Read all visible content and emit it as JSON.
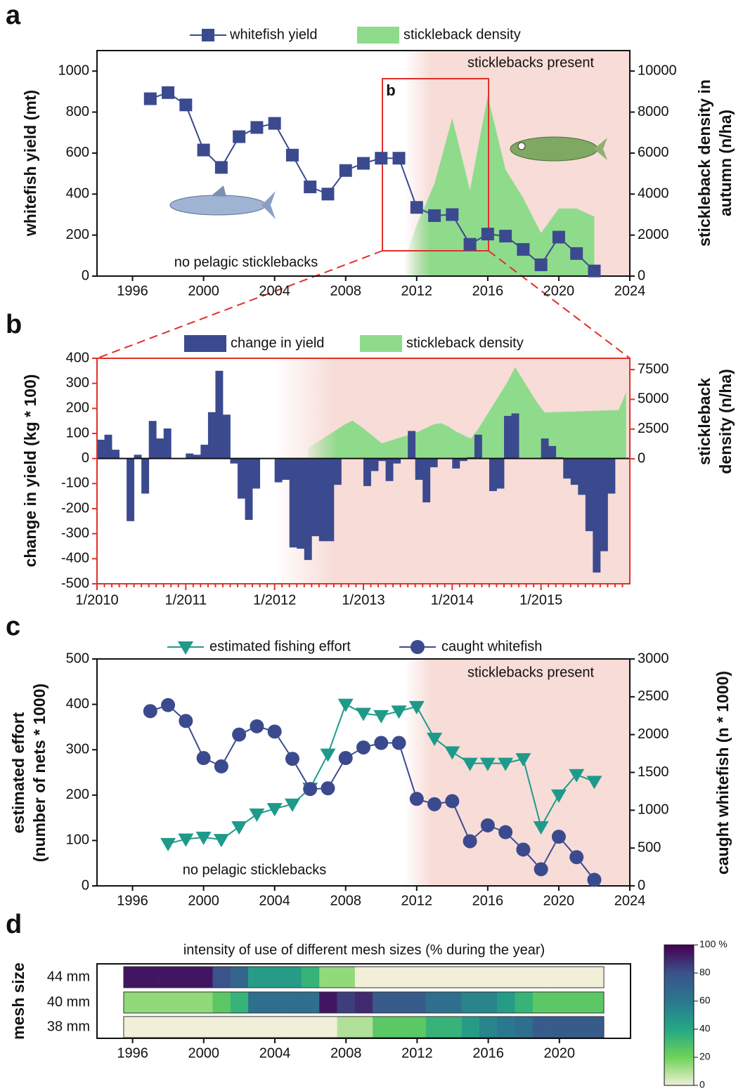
{
  "chart_data": [
    {
      "type": "line_area",
      "panel_label": "a",
      "annotations": [
        "sticklebacks present",
        "no pelagic sticklebacks"
      ],
      "zoom_label": "b",
      "ylabel": "whitefish yield (mt)",
      "y2label": [
        "stickleback density in",
        "autumn (n/ha)"
      ],
      "x": [
        1997,
        1998,
        1999,
        2000,
        2001,
        2002,
        2003,
        2004,
        2005,
        2006,
        2007,
        2008,
        2009,
        2010,
        2011,
        2012,
        2013,
        2014,
        2015,
        2016,
        2017,
        2018,
        2019,
        2020,
        2021,
        2022
      ],
      "xlim": [
        1994,
        2024
      ],
      "xticks": [
        1996,
        2000,
        2004,
        2008,
        2012,
        2016,
        2020,
        2024
      ],
      "ylim": [
        0,
        1100
      ],
      "yticks": [
        0,
        200,
        400,
        600,
        800,
        1000
      ],
      "y2lim": [
        0,
        11000
      ],
      "y2ticks": [
        0,
        2000,
        4000,
        6000,
        8000,
        10000
      ],
      "series": [
        {
          "name": "whitefish yield",
          "color": "#3b4a8f",
          "values": [
            865,
            895,
            835,
            615,
            530,
            680,
            725,
            745,
            590,
            435,
            400,
            515,
            550,
            575,
            575,
            335,
            295,
            300,
            155,
            205,
            195,
            130,
            55,
            190,
            110,
            25
          ]
        },
        {
          "name": "stickleback density",
          "color": "#8fdb8c",
          "axis": "y2",
          "x": [
            2011,
            2012,
            2013,
            2014,
            2015,
            2016,
            2017,
            2018,
            2019,
            2020,
            2021,
            2022
          ],
          "values": [
            0,
            2500,
            4500,
            7700,
            4200,
            8800,
            5200,
            3800,
            2100,
            3300,
            3300,
            2900
          ]
        }
      ]
    },
    {
      "type": "bar_area",
      "panel_label": "b",
      "ylabel": "change in yield (kg * 100)",
      "y2label": [
        "stickleback",
        "density (n/ha)"
      ],
      "categories": [
        "1/2010",
        null,
        null,
        null,
        null,
        null,
        null,
        null,
        null,
        null,
        null,
        null,
        "1/2011",
        null,
        null,
        null,
        null,
        null,
        null,
        null,
        null,
        null,
        null,
        null,
        "1/2012",
        null,
        null,
        null,
        null,
        null,
        null,
        null,
        null,
        null,
        null,
        null,
        "1/2013",
        null,
        null,
        null,
        null,
        null,
        null,
        null,
        null,
        null,
        null,
        null,
        "1/2014",
        null,
        null,
        null,
        null,
        null,
        null,
        null,
        null,
        null,
        null,
        null,
        "1/2015",
        null,
        null,
        null,
        null,
        null,
        null,
        null,
        null,
        null,
        null,
        null
      ],
      "ylim": [
        -500,
        400
      ],
      "yticks": [
        -500,
        -400,
        -300,
        -200,
        -100,
        0,
        100,
        200,
        300,
        400
      ],
      "y2lim": [
        -10500,
        8450
      ],
      "y2ticks": [
        0,
        2500,
        5000,
        7500
      ],
      "series": [
        {
          "name": "change in yield",
          "color": "#3b4a8f",
          "values": [
            75,
            95,
            35,
            0,
            -250,
            15,
            -140,
            150,
            80,
            120,
            0,
            0,
            20,
            15,
            55,
            185,
            350,
            175,
            -20,
            -160,
            -245,
            -120,
            0,
            0,
            -95,
            -85,
            -355,
            -360,
            -405,
            -310,
            -330,
            -330,
            -105,
            0,
            0,
            0,
            -110,
            -50,
            -10,
            -90,
            -20,
            0,
            110,
            -85,
            -175,
            -35,
            0,
            0,
            -40,
            -10,
            5,
            95,
            0,
            -130,
            -120,
            170,
            180,
            0,
            0,
            0,
            80,
            50,
            5,
            -80,
            -105,
            -145,
            -290,
            -455,
            -370,
            -140,
            0,
            0
          ]
        },
        {
          "name": "stickleback density",
          "color": "#8fdb8c",
          "axis": "y2",
          "values": [
            null,
            null,
            null,
            null,
            null,
            null,
            null,
            null,
            null,
            null,
            null,
            null,
            null,
            null,
            null,
            null,
            null,
            null,
            null,
            null,
            null,
            null,
            null,
            null,
            null,
            null,
            null,
            null,
            900,
            1300,
            1700,
            2100,
            2500,
            2900,
            3200,
            2800,
            2300,
            1800,
            1300,
            1500,
            1700,
            1900,
            2100,
            2300,
            2600,
            2900,
            3000,
            2700,
            2300,
            2000,
            1700,
            2500,
            3500,
            4500,
            5500,
            6500,
            7700,
            6700,
            5700,
            4700,
            3900,
            3920,
            3940,
            3960,
            3980,
            4000,
            4020,
            4040,
            4060,
            4080,
            4100,
            5600
          ]
        }
      ]
    },
    {
      "type": "line",
      "panel_label": "c",
      "annotations": [
        "sticklebacks present",
        "no pelagic sticklebacks"
      ],
      "ylabel": [
        "estimated effort",
        "(number of nets * 1000)"
      ],
      "y2label": "caught whitefish (n * 1000)",
      "x": [
        1997,
        1998,
        1999,
        2000,
        2001,
        2002,
        2003,
        2004,
        2005,
        2006,
        2007,
        2008,
        2009,
        2010,
        2011,
        2012,
        2013,
        2014,
        2015,
        2016,
        2017,
        2018,
        2019,
        2020,
        2021,
        2022
      ],
      "xlim": [
        1994,
        2024
      ],
      "xticks": [
        1996,
        2000,
        2004,
        2008,
        2012,
        2016,
        2020,
        2024
      ],
      "ylim": [
        0,
        500
      ],
      "yticks": [
        0,
        100,
        200,
        300,
        400,
        500
      ],
      "y2lim": [
        0,
        3000
      ],
      "y2ticks": [
        0,
        500,
        1000,
        1500,
        2000,
        2500,
        3000
      ],
      "series": [
        {
          "name": "estimated fishing effort",
          "color": "#1f9a8a",
          "marker": "triangle-down",
          "x": [
            1998,
            1999,
            2000,
            2001,
            2002,
            2003,
            2004,
            2005,
            2006,
            2007,
            2008,
            2009,
            2010,
            2011,
            2012,
            2013,
            2014,
            2015,
            2016,
            2017,
            2018,
            2019,
            2020,
            2021,
            2022
          ],
          "values": [
            93,
            103,
            107,
            102,
            130,
            158,
            170,
            180,
            215,
            290,
            400,
            380,
            375,
            385,
            395,
            325,
            295,
            270,
            270,
            270,
            280,
            130,
            200,
            245,
            230
          ]
        },
        {
          "name": "caught whitefish",
          "color": "#3b4a8f",
          "marker": "circle",
          "axis": "y2",
          "values": [
            2310,
            2390,
            2180,
            1690,
            1580,
            2000,
            2110,
            2040,
            1680,
            1280,
            1290,
            1690,
            1830,
            1890,
            1890,
            1150,
            1080,
            1120,
            590,
            800,
            710,
            480,
            220,
            650,
            380,
            80
          ]
        }
      ]
    },
    {
      "type": "heatmap",
      "panel_label": "d",
      "title": "intensity of use of different mesh sizes (% during the year)",
      "ylabel": "mesh size",
      "x": [
        1996,
        1997,
        1998,
        1999,
        2000,
        2001,
        2002,
        2003,
        2004,
        2005,
        2006,
        2007,
        2008,
        2009,
        2010,
        2011,
        2012,
        2013,
        2014,
        2015,
        2016,
        2017,
        2018,
        2019,
        2020,
        2021,
        2022
      ],
      "xlim": [
        1994,
        2024
      ],
      "xticks": [
        1996,
        2000,
        2004,
        2008,
        2012,
        2016,
        2020
      ],
      "series": [
        {
          "name": "44 mm",
          "values": [
            95,
            95,
            95,
            95,
            95,
            80,
            70,
            45,
            45,
            45,
            35,
            15,
            15,
            0,
            0,
            0,
            0,
            0,
            0,
            0,
            0,
            0,
            0,
            0,
            0,
            0,
            0
          ]
        },
        {
          "name": "40 mm",
          "values": [
            15,
            15,
            15,
            15,
            15,
            25,
            35,
            65,
            65,
            65,
            65,
            95,
            85,
            90,
            75,
            75,
            75,
            65,
            65,
            55,
            55,
            45,
            35,
            25,
            25,
            25,
            25
          ]
        },
        {
          "name": "38 mm",
          "values": [
            0,
            0,
            0,
            0,
            0,
            0,
            0,
            0,
            0,
            0,
            0,
            0,
            10,
            10,
            25,
            25,
            25,
            35,
            35,
            45,
            55,
            60,
            65,
            75,
            75,
            75,
            75
          ]
        }
      ],
      "clim": [
        0,
        100
      ],
      "cticks": [
        0,
        20,
        40,
        60,
        80,
        {
          "value": 100,
          "label": "100 %"
        }
      ],
      "colormap": [
        "#f2efd8",
        "#6fd35a",
        "#24a884",
        "#2a788e",
        "#3b528b",
        "#440154"
      ]
    }
  ]
}
